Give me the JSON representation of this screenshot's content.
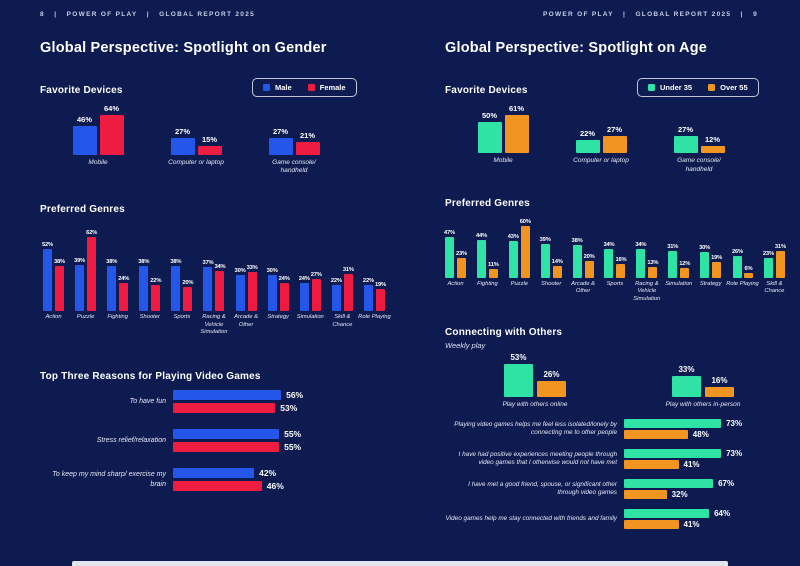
{
  "colors": {
    "background": "#0e1b50",
    "male": "#2457e9",
    "female": "#ee1c41",
    "under35": "#2fe3a4",
    "over55": "#f19420",
    "text": "#ffffff"
  },
  "header_left": "8   |   POWER OF PLAY   |   GLOBAL REPORT 2025",
  "header_right": "POWER OF PLAY   |   GLOBAL REPORT 2025   |   9",
  "left": {
    "title": "Global Perspective: Spotlight on Gender",
    "devices_title": "Favorite Devices",
    "genres_title": "Preferred Genres",
    "reasons_title": "Top Three Reasons for Playing Video Games",
    "legend": [
      {
        "label": "Male",
        "color": "#2457e9"
      },
      {
        "label": "Female",
        "color": "#ee1c41"
      }
    ]
  },
  "right": {
    "title": "Global Perspective: Spotlight on Age",
    "devices_title": "Favorite Devices",
    "genres_title": "Preferred Genres",
    "connecting_title": "Connecting with Others",
    "connecting_subtitle": "Weekly play",
    "legend": [
      {
        "label": "Under 35",
        "color": "#2fe3a4"
      },
      {
        "label": "Over 55",
        "color": "#f19420"
      }
    ]
  },
  "chart_data": [
    {
      "id": "gender-devices",
      "type": "bar",
      "title": "Favorite Devices",
      "unit": "%",
      "categories": [
        "Mobile",
        "Computer or laptop",
        "Game console/ handheld"
      ],
      "series": [
        {
          "name": "Male",
          "color": "#2457e9",
          "values": [
            46,
            27,
            27
          ]
        },
        {
          "name": "Female",
          "color": "#ee1c41",
          "values": [
            64,
            15,
            21
          ]
        }
      ],
      "legend_position": "top-right",
      "grid": false
    },
    {
      "id": "gender-genres",
      "type": "bar",
      "title": "Preferred Genres",
      "unit": "%",
      "categories": [
        "Action",
        "Puzzle",
        "Fighting",
        "Shooter",
        "Sports",
        "Racing & Vehicle Simulation",
        "Arcade & Other",
        "Strategy",
        "Simulation",
        "Skill & Chance",
        "Role Playing"
      ],
      "series": [
        {
          "name": "Male",
          "color": "#2457e9",
          "values": [
            52,
            39,
            38,
            38,
            38,
            37,
            30,
            30,
            24,
            22,
            22
          ]
        },
        {
          "name": "Female",
          "color": "#ee1c41",
          "values": [
            38,
            62,
            24,
            22,
            20,
            34,
            33,
            24,
            27,
            31,
            19
          ]
        }
      ],
      "grid": false
    },
    {
      "id": "gender-reasons",
      "type": "bar-horizontal",
      "title": "Top Three Reasons for Playing Video Games",
      "unit": "%",
      "categories": [
        "To have fun",
        "Stress relief/relaxation",
        "To keep my mind sharp/ exercise my brain"
      ],
      "series": [
        {
          "name": "Male",
          "color": "#2457e9",
          "values": [
            56,
            55,
            42
          ]
        },
        {
          "name": "Female",
          "color": "#ee1c41",
          "values": [
            53,
            55,
            46
          ]
        }
      ],
      "grid": false
    },
    {
      "id": "age-devices",
      "type": "bar",
      "title": "Favorite Devices",
      "unit": "%",
      "categories": [
        "Mobile",
        "Computer or laptop",
        "Game console/ handheld"
      ],
      "series": [
        {
          "name": "Under 35",
          "color": "#2fe3a4",
          "values": [
            50,
            22,
            27
          ]
        },
        {
          "name": "Over 55",
          "color": "#f19420",
          "values": [
            61,
            27,
            12
          ]
        }
      ],
      "legend_position": "top-right",
      "grid": false
    },
    {
      "id": "age-genres",
      "type": "bar",
      "title": "Preferred Genres",
      "unit": "%",
      "categories": [
        "Action",
        "Fighting",
        "Puzzle",
        "Shooter",
        "Arcade & Other",
        "Sports",
        "Racing & Vehicle Simulation",
        "Simulation",
        "Strategy",
        "Role Playing",
        "Skill & Chance"
      ],
      "series": [
        {
          "name": "Under 35",
          "color": "#2fe3a4",
          "values": [
            47,
            44,
            43,
            39,
            38,
            34,
            34,
            31,
            30,
            26,
            23
          ]
        },
        {
          "name": "Over 55",
          "color": "#f19420",
          "values": [
            23,
            11,
            60,
            14,
            20,
            16,
            13,
            12,
            19,
            6,
            31
          ]
        }
      ],
      "grid": false
    },
    {
      "id": "age-connecting",
      "type": "bar",
      "title": "Connecting with Others",
      "subtitle": "Weekly play",
      "unit": "%",
      "categories": [
        "Play with others online",
        "Play with others in-person"
      ],
      "series": [
        {
          "name": "Under 35",
          "color": "#2fe3a4",
          "values": [
            53,
            33
          ]
        },
        {
          "name": "Over 55",
          "color": "#f19420",
          "values": [
            26,
            16
          ]
        }
      ],
      "grid": false
    },
    {
      "id": "age-statements",
      "type": "bar-horizontal",
      "unit": "%",
      "categories": [
        "Playing video games helps me feel less isolated/lonely by connecting me to other people",
        "I have had positive experiences meeting people through video games that I otherwise would not have met",
        "I have met a good friend, spouse, or significant other through video games",
        "Video games help me stay connected with friends and family"
      ],
      "series": [
        {
          "name": "Under 35",
          "color": "#2fe3a4",
          "values": [
            73,
            73,
            67,
            64
          ]
        },
        {
          "name": "Over 55",
          "color": "#f19420",
          "values": [
            48,
            41,
            32,
            41
          ]
        }
      ],
      "grid": false
    }
  ]
}
